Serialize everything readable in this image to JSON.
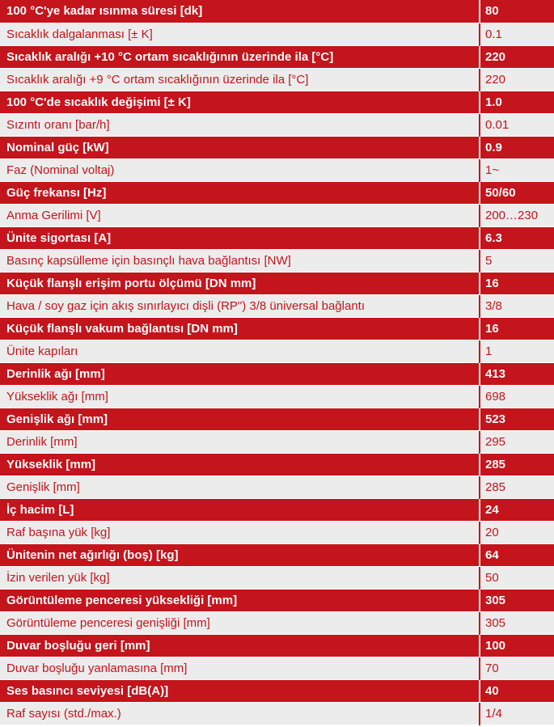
{
  "colors": {
    "dark_row_bg": "#c4141c",
    "dark_row_text": "#ffffff",
    "light_row_bg": "#ececec",
    "light_row_text": "#c4141c"
  },
  "specs": [
    {
      "label": "100 °C'ye kadar ısınma süresi [dk]",
      "value": "80"
    },
    {
      "label": "Sıcaklık dalgalanması [± K]",
      "value": "0.1"
    },
    {
      "label": "Sıcaklık aralığı +10 °C ortam sıcaklığının üzerinde ila [°C]",
      "value": "220"
    },
    {
      "label": "Sıcaklık aralığı +9 °C ortam sıcaklığının üzerinde ila [°C]",
      "value": "220"
    },
    {
      "label": "100 °C'de sıcaklık değişimi [± K]",
      "value": "1.0"
    },
    {
      "label": "Sızıntı oranı [bar/h]",
      "value": "0.01"
    },
    {
      "label": "Nominal güç [kW]",
      "value": "0.9"
    },
    {
      "label": "Faz (Nominal voltaj)",
      "value": "1~"
    },
    {
      "label": "Güç frekansı [Hz]",
      "value": "50/60"
    },
    {
      "label": "Anma Gerilimi [V]",
      "value": "200…230"
    },
    {
      "label": "Ünite sigortası [A]",
      "value": "6.3"
    },
    {
      "label": "Basınç kapsülleme için basınçlı hava bağlantısı [NW]",
      "value": "5"
    },
    {
      "label": "Küçük flanşlı erişim portu ölçümü [DN mm]",
      "value": "16"
    },
    {
      "label": "Hava / soy gaz için akış sınırlayıcı dişli (RP\") 3/8 üniversal bağlantı",
      "value": "3/8"
    },
    {
      "label": "Küçük flanşlı vakum bağlantısı [DN mm]",
      "value": "16"
    },
    {
      "label": "Ünite kapıları",
      "value": "1"
    },
    {
      "label": "Derinlik ağı [mm]",
      "value": "413"
    },
    {
      "label": "Yükseklik ağı [mm]",
      "value": "698"
    },
    {
      "label": "Genişlik ağı [mm]",
      "value": "523"
    },
    {
      "label": "Derinlik [mm]",
      "value": "295"
    },
    {
      "label": "Yükseklik [mm]",
      "value": "285"
    },
    {
      "label": "Genişlik [mm]",
      "value": "285"
    },
    {
      "label": "İç hacim [L]",
      "value": "24"
    },
    {
      "label": "Raf başına yük [kg]",
      "value": "20"
    },
    {
      "label": "Ünitenin net ağırlığı (boş) [kg]",
      "value": "64"
    },
    {
      "label": "İzin verilen yük [kg]",
      "value": "50"
    },
    {
      "label": "Görüntüleme penceresi yüksekliği [mm]",
      "value": "305"
    },
    {
      "label": "Görüntüleme penceresi genişliği [mm]",
      "value": "305"
    },
    {
      "label": "Duvar boşluğu geri [mm]",
      "value": "100"
    },
    {
      "label": "Duvar boşluğu yanlamasına [mm]",
      "value": "70"
    },
    {
      "label": "Ses basıncı seviyesi [dB(A)]",
      "value": "40"
    },
    {
      "label": "Raf sayısı (std./max.)",
      "value": "1/4"
    }
  ]
}
